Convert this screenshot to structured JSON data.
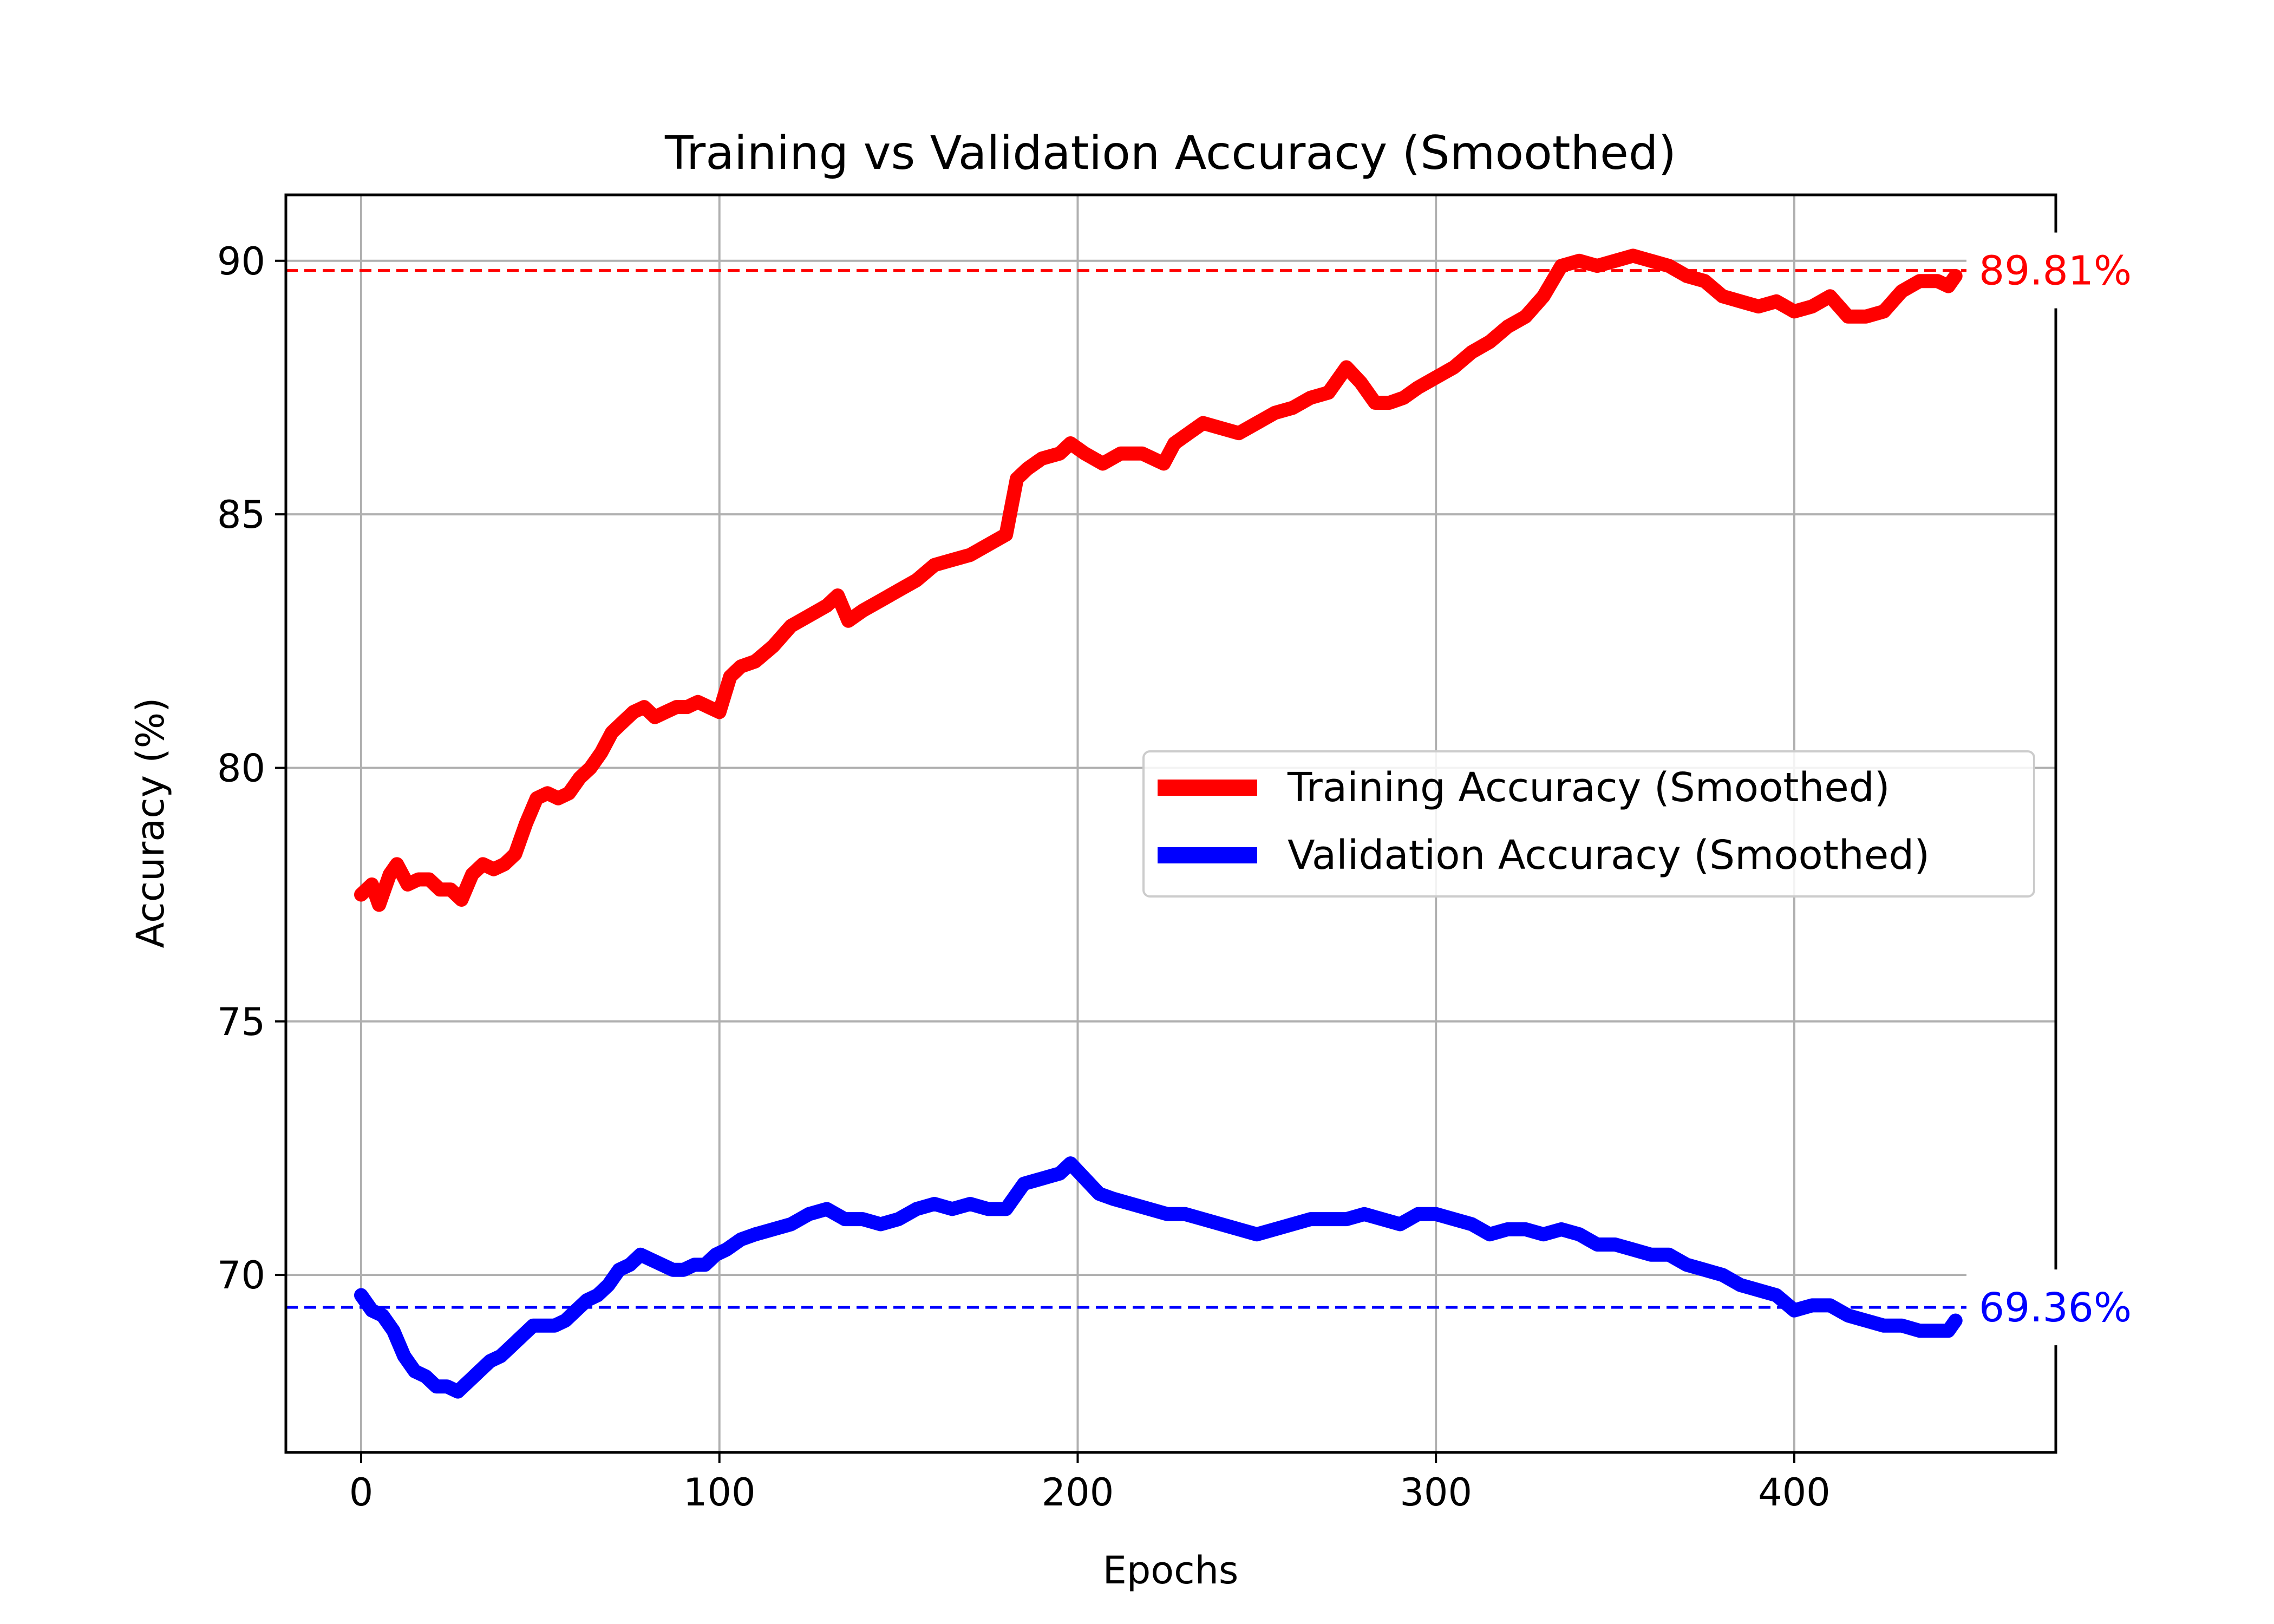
{
  "chart_data": {
    "type": "line",
    "title": "Training vs Validation Accuracy (Smoothed)",
    "xlabel": "Epochs",
    "ylabel": "Accuracy (%)",
    "xlim": [
      -21,
      473
    ],
    "ylim": [
      66.5,
      91.3
    ],
    "xticks": [
      0,
      100,
      200,
      300,
      400
    ],
    "yticks": [
      70,
      75,
      80,
      85,
      90
    ],
    "grid": true,
    "legend_position": "center-right",
    "series": [
      {
        "name": "Training Accuracy (Smoothed)",
        "color": "#ff0000",
        "x": [
          0,
          3,
          5,
          8,
          10,
          13,
          16,
          19,
          22,
          25,
          28,
          31,
          34,
          37,
          40,
          43,
          46,
          49,
          52,
          55,
          58,
          61,
          64,
          67,
          70,
          73,
          76,
          79,
          82,
          85,
          88,
          91,
          94,
          97,
          100,
          103,
          106,
          110,
          115,
          120,
          125,
          130,
          133,
          136,
          140,
          145,
          150,
          155,
          160,
          165,
          170,
          175,
          180,
          183,
          186,
          190,
          195,
          198,
          202,
          207,
          212,
          218,
          224,
          227,
          231,
          235,
          240,
          245,
          250,
          255,
          260,
          265,
          270,
          275,
          279,
          283,
          287,
          291,
          295,
          300,
          305,
          310,
          315,
          320,
          325,
          330,
          335,
          340,
          345,
          350,
          355,
          360,
          365,
          370,
          375,
          380,
          385,
          390,
          395,
          400,
          405,
          410,
          415,
          420,
          425,
          430,
          435,
          440,
          443,
          445
        ],
        "values": [
          77.5,
          77.7,
          77.3,
          77.9,
          78.1,
          77.7,
          77.8,
          77.8,
          77.6,
          77.6,
          77.4,
          77.9,
          78.1,
          78.0,
          78.1,
          78.3,
          78.9,
          79.4,
          79.5,
          79.4,
          79.5,
          79.8,
          80.0,
          80.3,
          80.7,
          80.9,
          81.1,
          81.2,
          81.0,
          81.1,
          81.2,
          81.2,
          81.3,
          81.2,
          81.1,
          81.8,
          82.0,
          82.1,
          82.4,
          82.8,
          83.0,
          83.2,
          83.4,
          82.9,
          83.1,
          83.3,
          83.5,
          83.7,
          84.0,
          84.1,
          84.2,
          84.4,
          84.6,
          85.7,
          85.9,
          86.1,
          86.2,
          86.4,
          86.2,
          86.0,
          86.2,
          86.2,
          86.0,
          86.4,
          86.6,
          86.8,
          86.7,
          86.6,
          86.8,
          87.0,
          87.1,
          87.3,
          87.4,
          87.9,
          87.6,
          87.2,
          87.2,
          87.3,
          87.5,
          87.7,
          87.9,
          88.2,
          88.4,
          88.7,
          88.9,
          89.3,
          89.9,
          90.0,
          89.9,
          90.0,
          90.1,
          90.0,
          89.9,
          89.7,
          89.6,
          89.3,
          89.2,
          89.1,
          89.2,
          89.0,
          89.1,
          89.3,
          88.9,
          88.9,
          89.0,
          89.4,
          89.6,
          89.6,
          89.5,
          89.7
        ]
      },
      {
        "name": "Validation Accuracy (Smoothed)",
        "color": "#0000ff",
        "x": [
          0,
          3,
          6,
          9,
          12,
          15,
          18,
          21,
          24,
          27,
          30,
          33,
          36,
          39,
          42,
          45,
          48,
          51,
          54,
          57,
          60,
          63,
          66,
          69,
          72,
          75,
          78,
          81,
          84,
          87,
          90,
          93,
          96,
          99,
          102,
          106,
          110,
          115,
          120,
          125,
          130,
          135,
          140,
          145,
          150,
          155,
          160,
          165,
          170,
          175,
          180,
          185,
          190,
          195,
          198,
          202,
          206,
          210,
          215,
          220,
          225,
          230,
          235,
          240,
          245,
          250,
          255,
          260,
          265,
          270,
          275,
          280,
          285,
          290,
          295,
          300,
          305,
          310,
          315,
          320,
          325,
          330,
          335,
          340,
          345,
          350,
          355,
          360,
          365,
          370,
          375,
          380,
          385,
          390,
          395,
          400,
          405,
          410,
          415,
          420,
          425,
          430,
          435,
          440,
          443,
          445
        ],
        "values": [
          69.6,
          69.3,
          69.2,
          68.9,
          68.4,
          68.1,
          68.0,
          67.8,
          67.8,
          67.7,
          67.9,
          68.1,
          68.3,
          68.4,
          68.6,
          68.8,
          69.0,
          69.0,
          69.0,
          69.1,
          69.3,
          69.5,
          69.6,
          69.8,
          70.1,
          70.2,
          70.4,
          70.3,
          70.2,
          70.1,
          70.1,
          70.2,
          70.2,
          70.4,
          70.5,
          70.7,
          70.8,
          70.9,
          71.0,
          71.2,
          71.3,
          71.1,
          71.1,
          71.0,
          71.1,
          71.3,
          71.4,
          71.3,
          71.4,
          71.3,
          71.3,
          71.8,
          71.9,
          72.0,
          72.2,
          71.9,
          71.6,
          71.5,
          71.4,
          71.3,
          71.2,
          71.2,
          71.1,
          71.0,
          70.9,
          70.8,
          70.9,
          71.0,
          71.1,
          71.1,
          71.1,
          71.2,
          71.1,
          71.0,
          71.2,
          71.2,
          71.1,
          71.0,
          70.8,
          70.9,
          70.9,
          70.8,
          70.9,
          70.8,
          70.6,
          70.6,
          70.5,
          70.4,
          70.4,
          70.2,
          70.1,
          70.0,
          69.8,
          69.7,
          69.6,
          69.3,
          69.4,
          69.4,
          69.2,
          69.1,
          69.0,
          69.0,
          68.9,
          68.9,
          68.9,
          69.1
        ]
      }
    ],
    "reference_lines": [
      {
        "y": 89.81,
        "color": "#ff0000",
        "label": "89.81%"
      },
      {
        "y": 69.36,
        "color": "#0000ff",
        "label": "69.36%"
      }
    ]
  }
}
